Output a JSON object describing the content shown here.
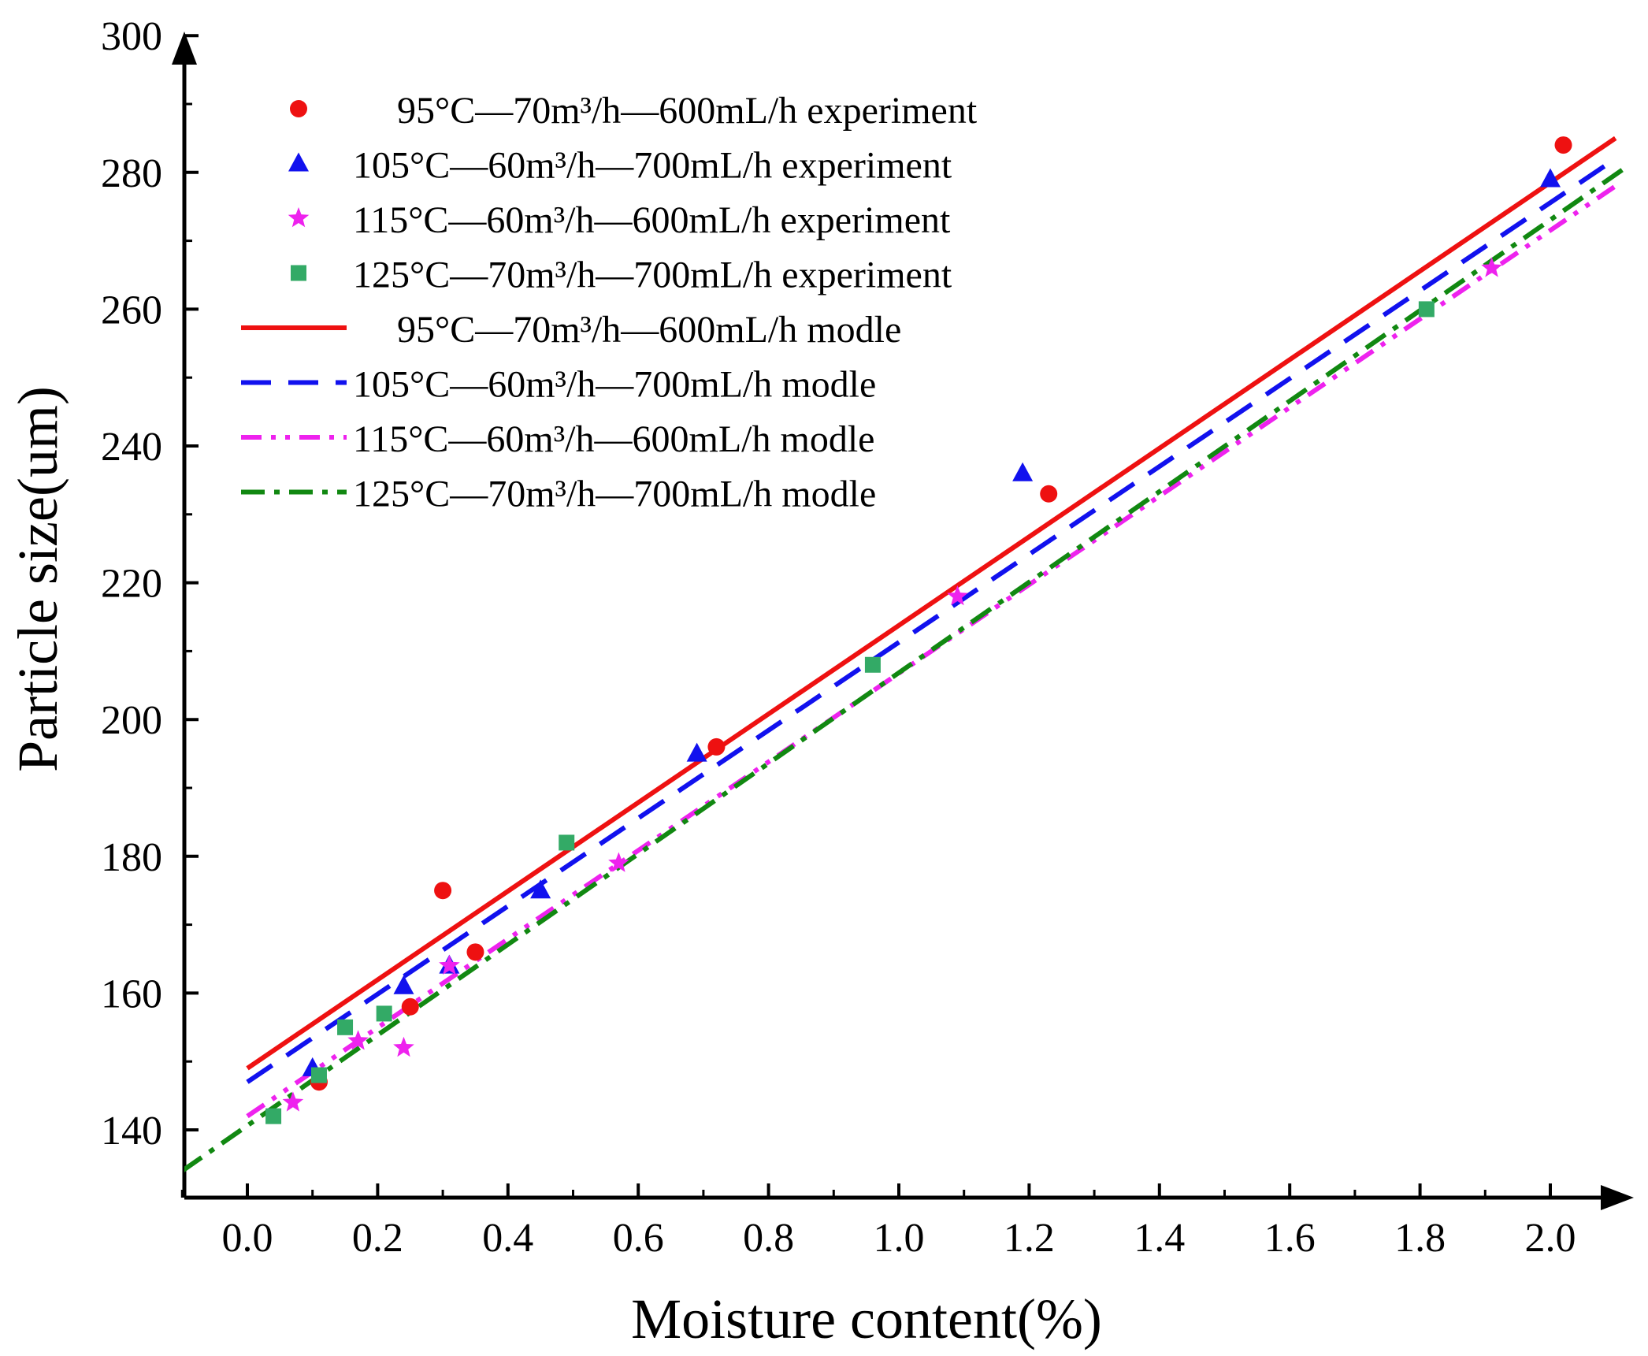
{
  "chart_data": {
    "type": "scatter",
    "title": "",
    "xlabel": "Moisture content(%)",
    "ylabel": "Particle size(um)",
    "xlim": [
      -0.1,
      2.12
    ],
    "ylim": [
      130,
      300
    ],
    "xticks": [
      0.0,
      0.2,
      0.4,
      0.6,
      0.8,
      1.0,
      1.2,
      1.4,
      1.6,
      1.8,
      2.0
    ],
    "xtick_labels": [
      "0.0",
      "0.2",
      "0.4",
      "0.6",
      "0.8",
      "1.0",
      "1.2",
      "1.4",
      "1.6",
      "1.8",
      "2.0"
    ],
    "yticks": [
      140,
      160,
      180,
      200,
      220,
      240,
      260,
      280,
      300
    ],
    "ytick_labels": [
      "140",
      "160",
      "180",
      "200",
      "220",
      "240",
      "260",
      "280",
      "300"
    ],
    "grid": false,
    "legend_position": "top-left",
    "series": [
      {
        "name": "95°C—70m³/h—600mL/h experiment",
        "kind": "scatter",
        "marker": "circle",
        "color": "#ee1111",
        "x": [
          0.11,
          0.25,
          0.3,
          0.35,
          0.72,
          1.23,
          2.02
        ],
        "y": [
          147,
          158,
          175,
          166,
          196,
          233,
          284
        ]
      },
      {
        "name": "105°C—60m³/h—700mL/h experiment",
        "kind": "scatter",
        "marker": "triangle",
        "color": "#1111ee",
        "x": [
          0.1,
          0.24,
          0.31,
          0.45,
          0.69,
          1.19,
          2.0
        ],
        "y": [
          149,
          161,
          164,
          175,
          195,
          236,
          279
        ]
      },
      {
        "name": "115°C—60m³/h—600mL/h experiment",
        "kind": "scatter",
        "marker": "star",
        "color": "#ee22ee",
        "x": [
          0.07,
          0.17,
          0.24,
          0.31,
          0.57,
          1.09,
          1.91
        ],
        "y": [
          144,
          153,
          152,
          164,
          179,
          218,
          266
        ]
      },
      {
        "name": "125°C—70m³/h—700mL/h experiment",
        "kind": "scatter",
        "marker": "square",
        "color": "#33aa66",
        "x": [
          0.04,
          0.11,
          0.15,
          0.21,
          0.49,
          0.96,
          1.81
        ],
        "y": [
          142,
          148,
          155,
          157,
          182,
          208,
          260
        ]
      },
      {
        "name": "95°C—70m³/h—600mL/h modle",
        "kind": "line",
        "style": "solid",
        "color": "#ee1111",
        "x": [
          0.0,
          2.1
        ],
        "y": [
          149,
          285
        ]
      },
      {
        "name": "105°C—60m³/h—700mL/h modle",
        "kind": "line",
        "style": "dash",
        "color": "#1111ee",
        "x": [
          0.0,
          2.1
        ],
        "y": [
          147,
          282
        ]
      },
      {
        "name": "115°C—60m³/h—600mL/h modle",
        "kind": "line",
        "style": "dashdotdot",
        "color": "#ee22ee",
        "x": [
          0.0,
          2.1
        ],
        "y": [
          142,
          278
        ]
      },
      {
        "name": "125°C—70m³/h—700mL/h modle",
        "kind": "line",
        "style": "dashdot",
        "color": "#118811",
        "x": [
          -0.1,
          2.12
        ],
        "y": [
          134,
          281
        ]
      }
    ]
  }
}
